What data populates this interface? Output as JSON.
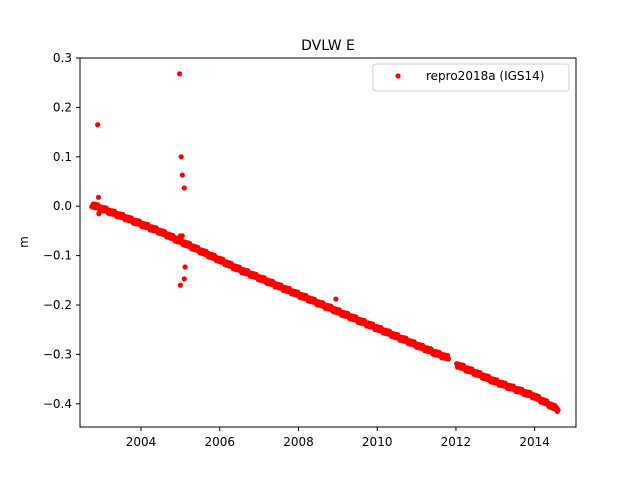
{
  "chart_data": {
    "type": "scatter",
    "title": "DVLW E",
    "xlabel": "",
    "ylabel": "m",
    "xlim": [
      2002.45,
      2015.05
    ],
    "ylim": [
      -0.447,
      0.3
    ],
    "xticks": [
      2004,
      2006,
      2008,
      2010,
      2012,
      2014
    ],
    "xtick_labels": [
      "2004",
      "2006",
      "2008",
      "2010",
      "2012",
      "2014"
    ],
    "yticks": [
      0.3,
      0.2,
      0.1,
      0.0,
      -0.1,
      -0.2,
      -0.3,
      -0.4
    ],
    "ytick_labels": [
      "0.3",
      "0.2",
      "0.1",
      "0.0",
      "−0.1",
      "−0.2",
      "−0.3",
      "−0.4"
    ],
    "grid": false,
    "legend_position": "upper right",
    "series": [
      {
        "name": "repro2018a (IGS14)",
        "color": "#ff0000",
        "marker": "circle",
        "trend": {
          "x": [
            2002.75,
            2003.5,
            2004.5,
            2005.5,
            2006.5,
            2007.5,
            2008.5,
            2009.5,
            2010.5,
            2011.5,
            2011.9,
            2012.0,
            2013.0,
            2014.0,
            2014.6
          ],
          "y": [
            0.003,
            -0.02,
            -0.052,
            -0.09,
            -0.128,
            -0.162,
            -0.196,
            -0.23,
            -0.264,
            -0.298,
            -0.31,
            -0.32,
            -0.355,
            -0.385,
            -0.412
          ]
        },
        "gaps": [
          [
            2011.82,
            2012.0
          ]
        ],
        "outliers": {
          "x": [
            2002.9,
            2002.92,
            2002.93,
            2004.98,
            2005.02,
            2005.05,
            2005.1,
            2005.0,
            2005.12,
            2005.1,
            2008.95,
            2005.0,
            2005.05
          ],
          "y": [
            0.165,
            0.018,
            -0.015,
            0.268,
            0.1,
            0.063,
            0.037,
            -0.16,
            -0.123,
            -0.147,
            -0.188,
            -0.06,
            -0.06
          ]
        }
      }
    ]
  }
}
